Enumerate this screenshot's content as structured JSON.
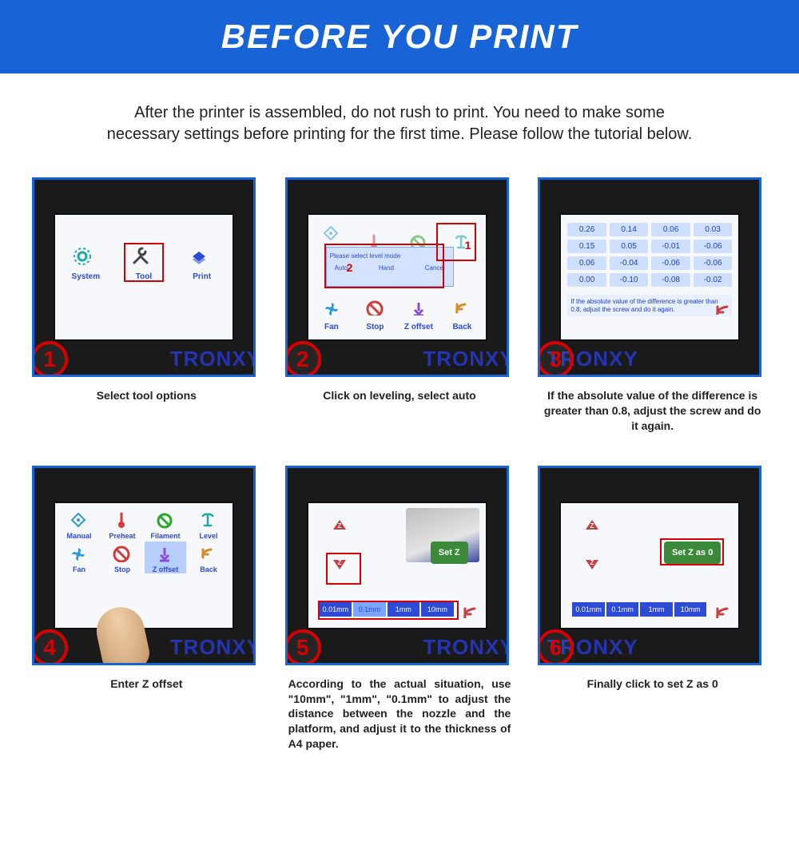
{
  "header": {
    "title": "BEFORE YOU PRINT"
  },
  "intro": "After the printer is assembled, do not rush to print. You need to make some necessary settings before printing for the first time. Please follow the tutorial below.",
  "brand": "TRONXY",
  "colors": {
    "accent": "#1864d6",
    "highlight_red": "#d60000",
    "ui_blue": "#2d4bd6",
    "button_green": "#3a8a3a"
  },
  "steps": [
    {
      "num": "1",
      "caption": "Select tool options",
      "tiles": [
        "System",
        "Tool",
        "Print"
      ],
      "selected": "Tool"
    },
    {
      "num": "2",
      "caption": "Click on leveling, select auto",
      "popup_title": "Please select level mode",
      "popup_opts": [
        "Auto",
        "Hand",
        "Cancel"
      ],
      "bottom_tiles": [
        "Fan",
        "Stop",
        "Z offset",
        "Back"
      ],
      "red_labels": [
        "1",
        "2"
      ]
    },
    {
      "num": "3",
      "caption": "If the absolute value of the difference is greater than 0.8, adjust the screw and do it again.",
      "values": [
        "0.26",
        "0.14",
        "0.06",
        "0.03",
        "0.15",
        "0.05",
        "-0.01",
        "-0.06",
        "0.06",
        "-0.04",
        "-0.06",
        "-0.06",
        "0.00",
        "-0.10",
        "-0.08",
        "-0.02"
      ],
      "note": "If the absolute value of the difference is greater than 0.8, adjust the screw and do it again."
    },
    {
      "num": "4",
      "caption": "Enter Z offset",
      "tiles_top": [
        "Manual",
        "Preheat",
        "Filament",
        "Level"
      ],
      "tiles_bot": [
        "Fan",
        "Stop",
        "Z offset",
        "Back"
      ],
      "selected": "Z offset"
    },
    {
      "num": "5",
      "caption": "According to the actual situation, use \"10mm\", \"1mm\", \"0.1mm\" to adjust the distance between the nozzle and the platform, and adjust it to the thickness of A4 paper.",
      "setz_label": "Set Z",
      "mm": [
        "0.01mm",
        "0.1mm",
        "1mm",
        "10mm"
      ],
      "mm_selected": "0.1mm"
    },
    {
      "num": "6",
      "caption": "Finally click to set Z as 0",
      "setz_label": "Set Z as 0",
      "mm": [
        "0.01mm",
        "0.1mm",
        "1mm",
        "10mm"
      ]
    }
  ]
}
